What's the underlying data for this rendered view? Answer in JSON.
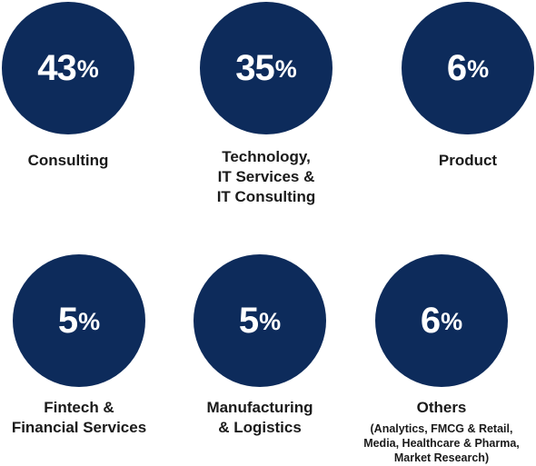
{
  "chart_data": {
    "type": "table",
    "items": [
      {
        "value": "43",
        "unit": "%",
        "label_lines": [
          "Consulting"
        ],
        "sub_lines": []
      },
      {
        "value": "35",
        "unit": "%",
        "label_lines": [
          "Technology,",
          "IT Services &",
          "IT Consulting"
        ],
        "sub_lines": []
      },
      {
        "value": "6",
        "unit": "%",
        "label_lines": [
          "Product"
        ],
        "sub_lines": []
      },
      {
        "value": "5",
        "unit": "%",
        "label_lines": [
          "Fintech &",
          "Financial Services"
        ],
        "sub_lines": []
      },
      {
        "value": "5",
        "unit": "%",
        "label_lines": [
          "Manufacturing",
          "& Logistics"
        ],
        "sub_lines": []
      },
      {
        "value": "6",
        "unit": "%",
        "label_lines": [
          "Others"
        ],
        "sub_lines": [
          "(Analytics, FMCG & Retail,",
          "Media, Healthcare & Pharma,",
          "Market Research)"
        ]
      }
    ],
    "colors": {
      "circle": "#0d2b5b",
      "number_text": "#ffffff",
      "label_text": "#1a1a1a"
    }
  }
}
